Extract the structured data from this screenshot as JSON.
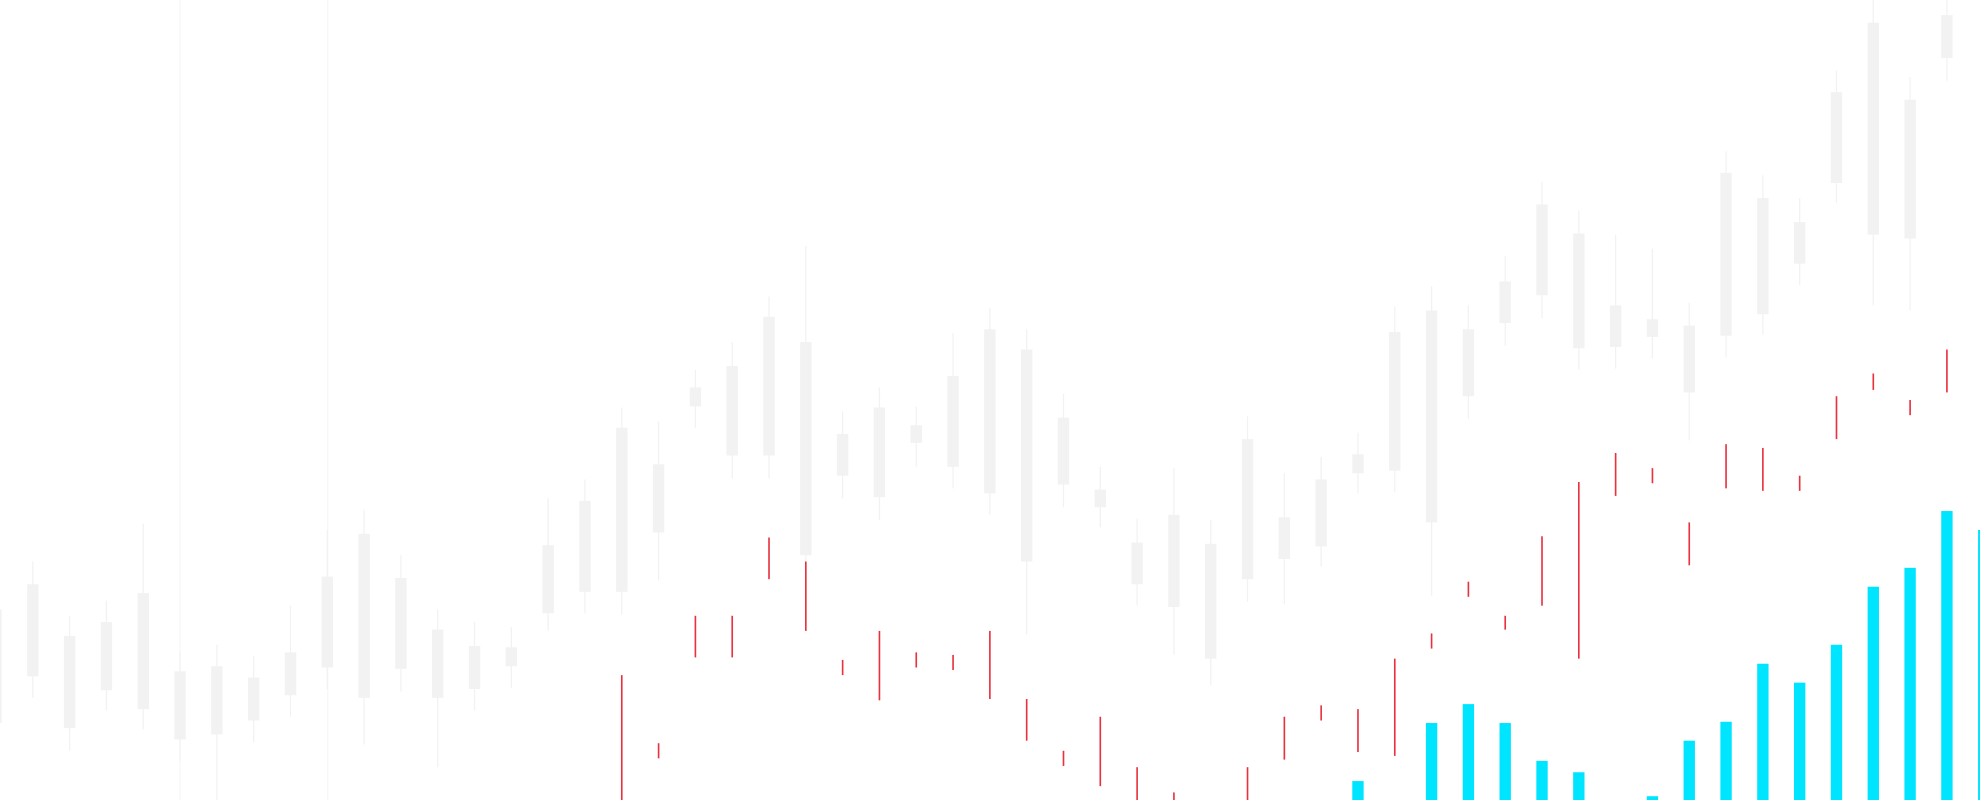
{
  "chart_data": {
    "type": "candlestick",
    "ylim": [
      0,
      634
    ],
    "series": [
      {
        "type": "candlestick",
        "color": "#f2f2f2",
        "open": [
          61,
          98,
          57,
          87,
          72,
          48,
          52,
          63,
          83,
          105,
          81,
          104,
          81,
          88,
          106,
          148,
          165,
          165,
          212,
          312,
          273,
          273,
          194,
          257,
          240,
          283,
          264,
          243,
          189,
          250,
          232,
          171,
          153,
          112,
          175,
          191,
          201,
          259,
          261,
          220,
          320,
          378,
          400,
          358,
          359,
          367,
          323,
          368,
          385,
          425,
          489,
          448,
          445,
          588,
          null
        ],
        "high": [
          151,
          189,
          146,
          158,
          219,
          117,
          123,
          114,
          154,
          214,
          230,
          194,
          151,
          141,
          137,
          239,
          254,
          311,
          300,
          341,
          363,
          399,
          439,
          308,
          327,
          312,
          370,
          390,
          373,
          322,
          264,
          223,
          263,
          222,
          304,
          259,
          272,
          291,
          391,
          407,
          392,
          431,
          490,
          467,
          448,
          437,
          394,
          514,
          495,
          477,
          578,
          634,
          573,
          634,
          null
        ],
        "low": [
          61,
          81,
          39,
          71,
          56,
          31,
          0,
          46,
          66,
          88,
          44,
          86,
          26,
          71,
          89,
          134,
          148,
          147,
          174,
          295,
          255,
          255,
          181,
          239,
          222,
          264,
          247,
          226,
          131,
          232,
          216,
          154,
          115,
          91,
          157,
          155,
          185,
          243,
          244,
          162,
          302,
          360,
          382,
          341,
          342,
          350,
          285,
          351,
          369,
          408,
          473,
          392,
          388,
          570,
          null
        ],
        "close": [
          151,
          171,
          130,
          141,
          164,
          102,
          106,
          97,
          117,
          177,
          211,
          176,
          135,
          122,
          121,
          202,
          237,
          295,
          266,
          327,
          344,
          383,
          363,
          290,
          311,
          297,
          336,
          373,
          357,
          303,
          246,
          204,
          226,
          203,
          286,
          224,
          254,
          274,
          371,
          388,
          373,
          411,
          472,
          449,
          392,
          381,
          376,
          497,
          477,
          458,
          561,
          616,
          555,
          622,
          null
        ]
      },
      {
        "type": "range",
        "color": "#e8333f",
        "high": [
          null,
          null,
          null,
          null,
          null,
          null,
          null,
          null,
          null,
          null,
          null,
          null,
          null,
          null,
          null,
          null,
          null,
          99,
          45,
          146,
          146,
          208,
          189,
          111,
          134,
          117,
          115,
          134,
          80,
          39,
          66,
          26,
          6,
          null,
          26,
          66,
          75,
          72,
          112,
          132,
          173,
          146,
          209,
          252,
          275,
          263,
          220,
          282,
          279,
          257,
          320,
          338,
          317,
          357,
          null
        ],
        "low": [
          null,
          null,
          null,
          null,
          null,
          null,
          null,
          null,
          null,
          null,
          null,
          null,
          null,
          null,
          null,
          null,
          null,
          0,
          33,
          113,
          113,
          175,
          134,
          99,
          79,
          105,
          103,
          80,
          47,
          27,
          11,
          0,
          0,
          null,
          0,
          32,
          63,
          38,
          35,
          120,
          161,
          135,
          154,
          112,
          241,
          251,
          186,
          247,
          245,
          245,
          286,
          325,
          305,
          323,
          null
        ]
      },
      {
        "type": "bar",
        "color": "#00e5ff",
        "values": [
          null,
          null,
          null,
          null,
          null,
          null,
          null,
          null,
          null,
          null,
          null,
          null,
          null,
          null,
          null,
          null,
          null,
          null,
          null,
          null,
          null,
          null,
          null,
          null,
          null,
          null,
          null,
          null,
          null,
          null,
          null,
          null,
          null,
          null,
          null,
          null,
          null,
          15,
          null,
          61,
          76,
          61,
          31,
          22,
          null,
          3,
          47,
          62,
          108,
          93,
          123,
          169,
          184,
          229,
          214
        ]
      }
    ]
  }
}
